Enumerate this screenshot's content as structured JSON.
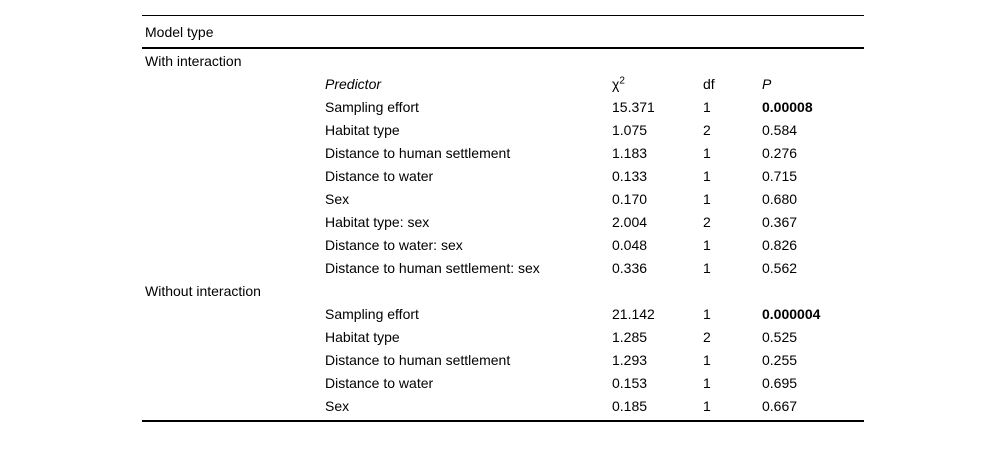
{
  "page": {
    "background": "#ffffff",
    "text_color": "#000000"
  },
  "table": {
    "title": "Model type",
    "columns": {
      "predictor": "Predictor",
      "chi_base": "χ",
      "chi_sup": "2",
      "df": "df",
      "p": "P"
    },
    "sections": [
      {
        "label": "With interaction",
        "rows": [
          {
            "predictor": "Sampling effort",
            "chi": "15.371",
            "df": "1",
            "p": "0.00008",
            "p_bold": true
          },
          {
            "predictor": "Habitat type",
            "chi": "1.075",
            "df": "2",
            "p": "0.584",
            "p_bold": false
          },
          {
            "predictor": "Distance to human settlement",
            "chi": "1.183",
            "df": "1",
            "p": "0.276",
            "p_bold": false
          },
          {
            "predictor": "Distance to water",
            "chi": "0.133",
            "df": "1",
            "p": "0.715",
            "p_bold": false
          },
          {
            "predictor": "Sex",
            "chi": "0.170",
            "df": "1",
            "p": "0.680",
            "p_bold": false
          },
          {
            "predictor": "Habitat type: sex",
            "chi": "2.004",
            "df": "2",
            "p": "0.367",
            "p_bold": false
          },
          {
            "predictor": "Distance to water: sex",
            "chi": "0.048",
            "df": "1",
            "p": "0.826",
            "p_bold": false
          },
          {
            "predictor": "Distance to human settlement: sex",
            "chi": "0.336",
            "df": "1",
            "p": "0.562",
            "p_bold": false
          }
        ]
      },
      {
        "label": "Without interaction",
        "rows": [
          {
            "predictor": "Sampling effort",
            "chi": "21.142",
            "df": "1",
            "p": "0.000004",
            "p_bold": true
          },
          {
            "predictor": "Habitat type",
            "chi": "1.285",
            "df": "2",
            "p": "0.525",
            "p_bold": false
          },
          {
            "predictor": "Distance to human settlement",
            "chi": "1.293",
            "df": "1",
            "p": "0.255",
            "p_bold": false
          },
          {
            "predictor": "Distance to water",
            "chi": "0.153",
            "df": "1",
            "p": "0.695",
            "p_bold": false
          },
          {
            "predictor": "Sex",
            "chi": "0.185",
            "df": "1",
            "p": "0.667",
            "p_bold": false
          }
        ]
      }
    ]
  }
}
